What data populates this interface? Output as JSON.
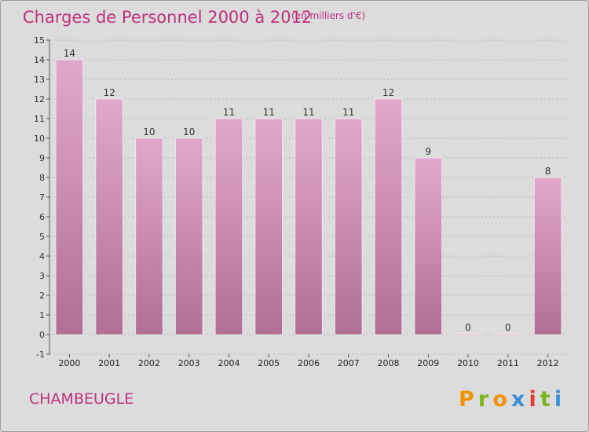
{
  "chart_data": {
    "type": "bar",
    "title": "Charges de Personnel 2000 à 2012",
    "subtitle": "(en milliers d'€)",
    "categories": [
      "2000",
      "2001",
      "2002",
      "2003",
      "2004",
      "2005",
      "2006",
      "2007",
      "2008",
      "2009",
      "2010",
      "2011",
      "2012"
    ],
    "values": [
      14,
      12,
      10,
      10,
      11,
      11,
      11,
      11,
      12,
      9,
      0,
      0,
      8
    ],
    "ylim": [
      -1,
      15
    ],
    "yticks": [
      -1,
      0,
      1,
      2,
      3,
      4,
      5,
      6,
      7,
      8,
      9,
      10,
      11,
      12,
      13,
      14,
      15
    ],
    "grid": true,
    "xlabel": "",
    "ylabel": "",
    "colors": {
      "bar_top": "#e3a7cc",
      "bar_bottom": "#b06f95",
      "grid": "#b8b8b8",
      "accent": "#c0317d"
    }
  },
  "location_label": "CHAMBEUGLE",
  "logo": {
    "text": "Proxiti",
    "letters": [
      "P",
      "r",
      "o",
      "x",
      "i",
      "t",
      "i"
    ],
    "colors": [
      "#f39200",
      "#79b51c",
      "#f39200",
      "#3a8fd9",
      "#e63b2e",
      "#79b51c",
      "#3a8fd9"
    ]
  }
}
